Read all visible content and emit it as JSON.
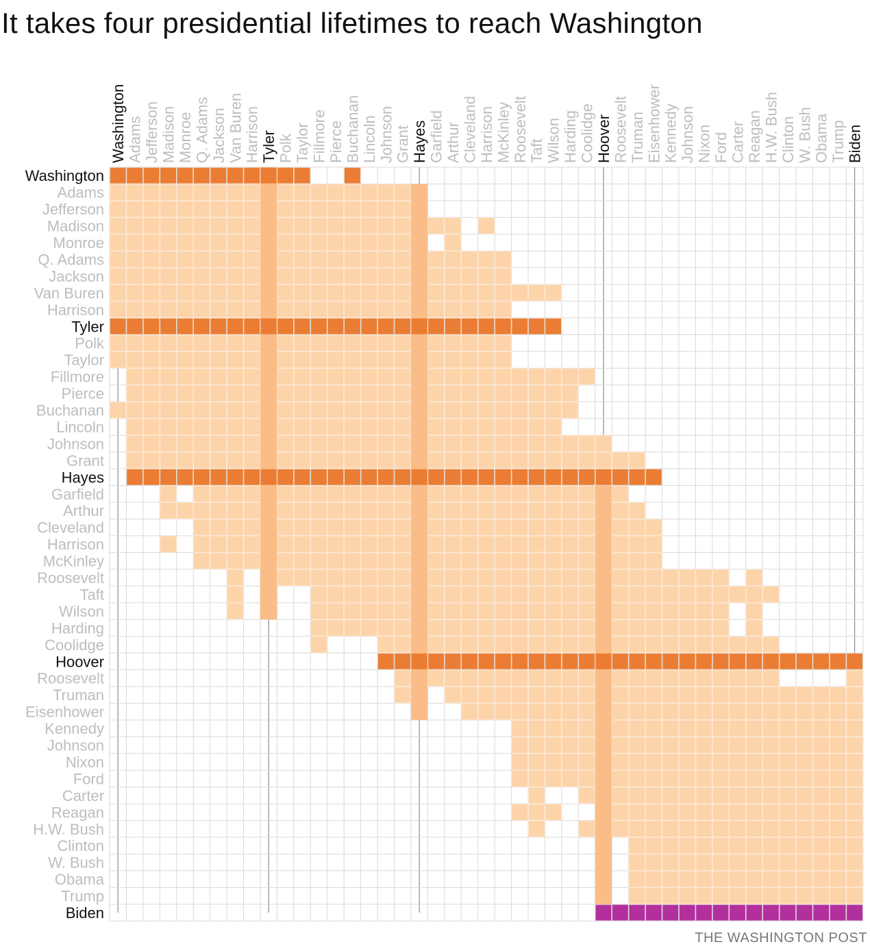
{
  "title": "It takes four presidential lifetimes to reach Washington",
  "source": "THE WASHINGTON POST",
  "chart_data": {
    "type": "heatmap",
    "description_axis": "rows = president whose lifetime is shown; columns = presidents; filled cell = lifetimes overlapped",
    "presidents": [
      "Washington",
      "Adams",
      "Jefferson",
      "Madison",
      "Monroe",
      "Q. Adams",
      "Jackson",
      "Van Buren",
      "Harrison",
      "Tyler",
      "Polk",
      "Taylor",
      "Fillmore",
      "Pierce",
      "Buchanan",
      "Lincoln",
      "Johnson",
      "Grant",
      "Hayes",
      "Garfield",
      "Arthur",
      "Cleveland",
      "Harrison",
      "McKinley",
      "Roosevelt",
      "Taft",
      "Wilson",
      "Harding",
      "Coolidge",
      "Hoover",
      "Roosevelt",
      "Truman",
      "Eisenhower",
      "Kennedy",
      "Johnson",
      "Nixon",
      "Ford",
      "Carter",
      "Reagan",
      "H.W. Bush",
      "Clinton",
      "W. Bush",
      "Obama",
      "Trump",
      "Biden"
    ],
    "chain": [
      "Washington",
      "Tyler",
      "Hayes",
      "Hoover",
      "Biden"
    ],
    "colors": {
      "overlap": "#fdd3a9",
      "chain_column": "#fbbd88",
      "chain_row": "#ea7d33",
      "final_row": "#b2309d",
      "grid": "#d9d9d9",
      "chain_line": "#8c8c8c",
      "label_muted": "#bdbdbd",
      "label_strong": "#111111"
    },
    "chain_rows": {
      "Washington": [
        0,
        1,
        2,
        3,
        4,
        5,
        6,
        7,
        8,
        9,
        10,
        11,
        14
      ],
      "Tyler": [
        0,
        1,
        2,
        3,
        4,
        5,
        6,
        7,
        8,
        9,
        10,
        11,
        12,
        13,
        14,
        15,
        16,
        17,
        18,
        19,
        20,
        21,
        22,
        23,
        24,
        25,
        26
      ],
      "Hayes": [
        1,
        2,
        3,
        4,
        5,
        6,
        7,
        8,
        9,
        10,
        11,
        12,
        13,
        14,
        15,
        16,
        17,
        18,
        19,
        20,
        21,
        22,
        23,
        24,
        25,
        26,
        27,
        28,
        29,
        30,
        31,
        32
      ],
      "Hoover": [
        16,
        17,
        18,
        19,
        20,
        21,
        22,
        23,
        24,
        25,
        26,
        27,
        28,
        29,
        30,
        31,
        32,
        33,
        34,
        35,
        36,
        37,
        38,
        39,
        40,
        41,
        42,
        43,
        44
      ],
      "Biden": [
        29,
        30,
        31,
        32,
        33,
        34,
        35,
        36,
        37,
        38,
        39,
        40,
        41,
        42,
        43,
        44
      ]
    },
    "overlap_rows": [
      {
        "row": 1,
        "ranges": [
          [
            0,
            18
          ]
        ]
      },
      {
        "row": 2,
        "ranges": [
          [
            0,
            18
          ]
        ]
      },
      {
        "row": 3,
        "ranges": [
          [
            0,
            20
          ],
          [
            22,
            22
          ]
        ]
      },
      {
        "row": 4,
        "ranges": [
          [
            0,
            18
          ],
          [
            20,
            20
          ]
        ]
      },
      {
        "row": 5,
        "ranges": [
          [
            0,
            23
          ]
        ]
      },
      {
        "row": 6,
        "ranges": [
          [
            0,
            23
          ]
        ]
      },
      {
        "row": 7,
        "ranges": [
          [
            0,
            26
          ]
        ]
      },
      {
        "row": 8,
        "ranges": [
          [
            0,
            23
          ]
        ]
      },
      {
        "row": 10,
        "ranges": [
          [
            0,
            23
          ]
        ]
      },
      {
        "row": 11,
        "ranges": [
          [
            0,
            23
          ]
        ]
      },
      {
        "row": 12,
        "ranges": [
          [
            1,
            28
          ]
        ]
      },
      {
        "row": 13,
        "ranges": [
          [
            1,
            27
          ]
        ]
      },
      {
        "row": 14,
        "ranges": [
          [
            0,
            27
          ]
        ]
      },
      {
        "row": 15,
        "ranges": [
          [
            1,
            26
          ]
        ]
      },
      {
        "row": 16,
        "ranges": [
          [
            1,
            29
          ]
        ]
      },
      {
        "row": 17,
        "ranges": [
          [
            1,
            31
          ]
        ]
      },
      {
        "row": 19,
        "ranges": [
          [
            3,
            3
          ],
          [
            5,
            30
          ]
        ]
      },
      {
        "row": 20,
        "ranges": [
          [
            3,
            31
          ]
        ]
      },
      {
        "row": 21,
        "ranges": [
          [
            5,
            32
          ]
        ]
      },
      {
        "row": 22,
        "ranges": [
          [
            3,
            3
          ],
          [
            5,
            32
          ]
        ]
      },
      {
        "row": 23,
        "ranges": [
          [
            5,
            32
          ]
        ]
      },
      {
        "row": 24,
        "ranges": [
          [
            7,
            7
          ],
          [
            9,
            36
          ],
          [
            38,
            38
          ]
        ]
      },
      {
        "row": 25,
        "ranges": [
          [
            7,
            7
          ],
          [
            9,
            9
          ],
          [
            12,
            39
          ]
        ]
      },
      {
        "row": 26,
        "ranges": [
          [
            7,
            7
          ],
          [
            9,
            9
          ],
          [
            12,
            36
          ],
          [
            38,
            38
          ]
        ]
      },
      {
        "row": 27,
        "ranges": [
          [
            12,
            36
          ],
          [
            38,
            38
          ]
        ]
      },
      {
        "row": 28,
        "ranges": [
          [
            12,
            12
          ],
          [
            16,
            39
          ]
        ]
      },
      {
        "row": 30,
        "ranges": [
          [
            17,
            39
          ],
          [
            44,
            44
          ]
        ]
      },
      {
        "row": 31,
        "ranges": [
          [
            17,
            17
          ],
          [
            20,
            44
          ]
        ]
      },
      {
        "row": 32,
        "ranges": [
          [
            18,
            18
          ],
          [
            21,
            44
          ]
        ]
      },
      {
        "row": 33,
        "ranges": [
          [
            24,
            44
          ]
        ]
      },
      {
        "row": 34,
        "ranges": [
          [
            24,
            44
          ]
        ]
      },
      {
        "row": 35,
        "ranges": [
          [
            24,
            44
          ]
        ]
      },
      {
        "row": 36,
        "ranges": [
          [
            24,
            44
          ]
        ]
      },
      {
        "row": 37,
        "ranges": [
          [
            25,
            25
          ],
          [
            28,
            44
          ]
        ]
      },
      {
        "row": 38,
        "ranges": [
          [
            24,
            26
          ],
          [
            29,
            44
          ]
        ]
      },
      {
        "row": 39,
        "ranges": [
          [
            25,
            25
          ],
          [
            28,
            44
          ]
        ]
      },
      {
        "row": 40,
        "ranges": [
          [
            29,
            29
          ],
          [
            31,
            44
          ]
        ]
      },
      {
        "row": 41,
        "ranges": [
          [
            29,
            29
          ],
          [
            31,
            44
          ]
        ]
      },
      {
        "row": 42,
        "ranges": [
          [
            29,
            29
          ],
          [
            31,
            44
          ]
        ]
      },
      {
        "row": 43,
        "ranges": [
          [
            29,
            29
          ],
          [
            31,
            44
          ]
        ]
      }
    ],
    "chain_column_spans": [
      {
        "col": 9,
        "rows": [
          0,
          26
        ]
      },
      {
        "col": 18,
        "rows": [
          1,
          32
        ]
      },
      {
        "col": 29,
        "rows": [
          19,
          43
        ]
      }
    ]
  }
}
